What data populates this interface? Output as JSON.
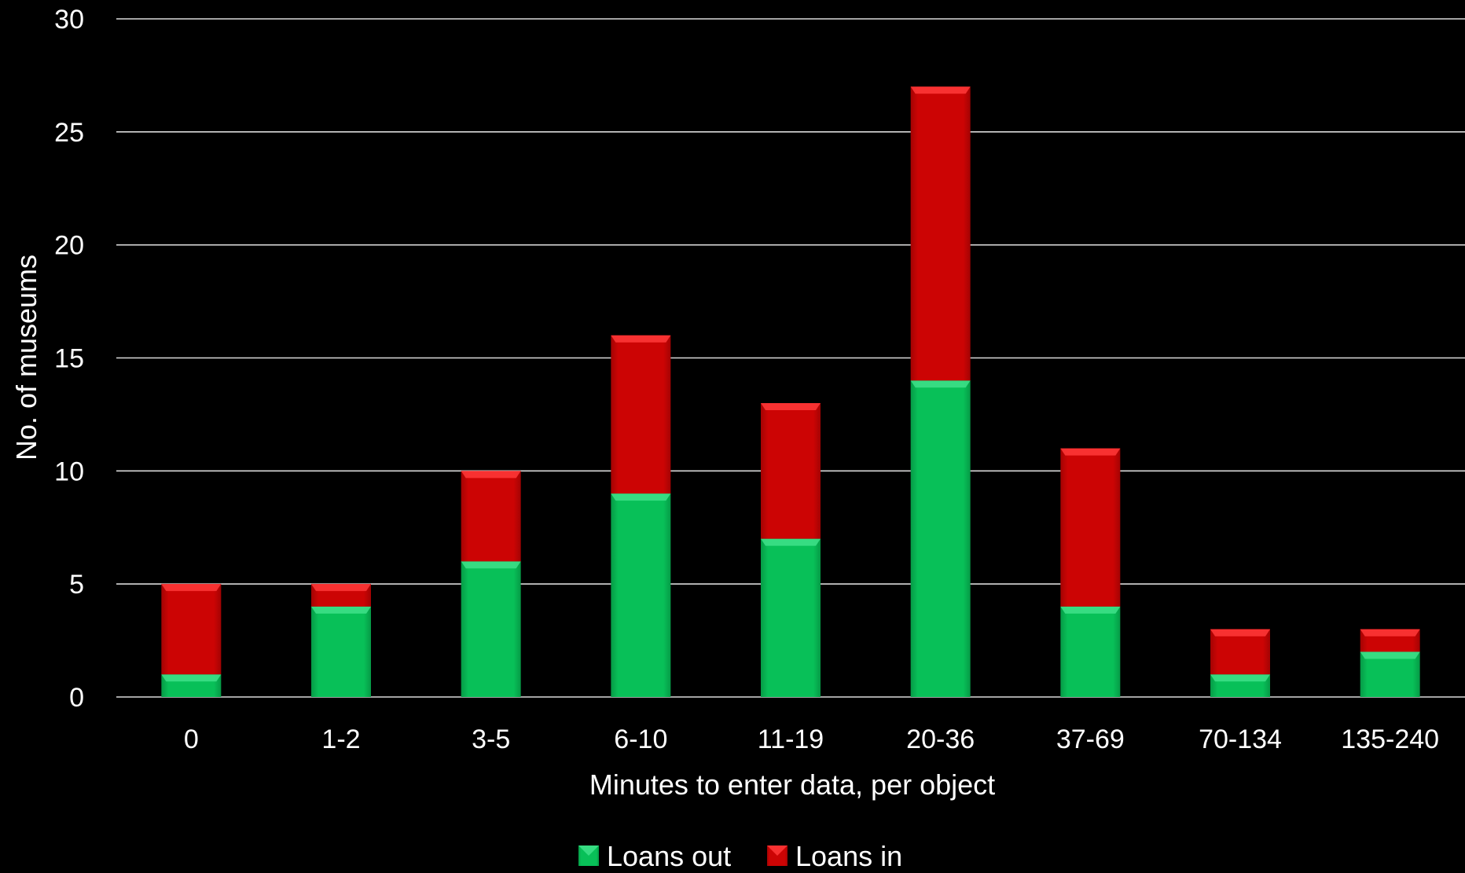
{
  "chart_data": {
    "type": "bar",
    "stacked": true,
    "categories": [
      "0",
      "1-2",
      "3-5",
      "6-10",
      "11-19",
      "20-36",
      "37-69",
      "70-134",
      "135-240"
    ],
    "series": [
      {
        "name": "Loans out",
        "values": [
          1,
          4,
          6,
          9,
          7,
          14,
          4,
          1,
          2
        ],
        "color": "#08c058"
      },
      {
        "name": "Loans in",
        "values": [
          4,
          1,
          4,
          7,
          6,
          13,
          7,
          2,
          1
        ],
        "color": "#cc0404"
      }
    ],
    "xlabel": "Minutes to enter data, per object",
    "ylabel": "No. of museums",
    "ylim": [
      0,
      30
    ],
    "yticks": [
      0,
      5,
      10,
      15,
      20,
      25,
      30
    ],
    "grid": true,
    "legend_position": "bottom",
    "background": "#000000",
    "text_color": "#ffffff",
    "gridline_color": "#d9d9d9"
  }
}
